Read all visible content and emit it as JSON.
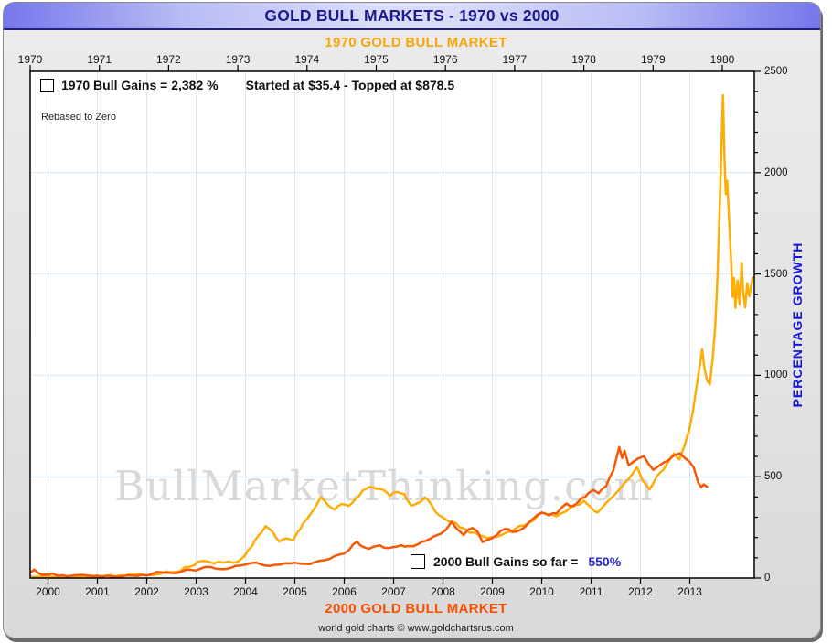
{
  "window_title": "GOLD BULL MARKETS - 1970 vs 2000",
  "top_axis": {
    "title": "1970 GOLD BULL MARKET",
    "years": [
      1970,
      1971,
      1972,
      1973,
      1974,
      1975,
      1976,
      1977,
      1978,
      1979,
      1980
    ]
  },
  "bottom_axis": {
    "title": "2000 GOLD BULL MARKET",
    "years": [
      2000,
      2001,
      2002,
      2003,
      2004,
      2005,
      2006,
      2007,
      2008,
      2009,
      2010,
      2011,
      2012,
      2013
    ]
  },
  "right_axis": {
    "title": "PERCENTAGE GROWTH",
    "major_ticks": [
      0,
      500,
      1000,
      1500,
      2000,
      2500
    ],
    "minor_step": 100
  },
  "legend_1970": {
    "gains_text": "1970 Bull Gains = 2,382 %",
    "detail_text": "Started at $35.4 - Topped at $878.5",
    "swatch_color": "#ffad00"
  },
  "legend_2000": {
    "gains_text": "2000 Bull Gains so far = ",
    "gains_value": "550%",
    "swatch_color": "#ff4d00"
  },
  "notes": {
    "rebased": "Rebased to Zero"
  },
  "watermark": "BullMarketThinking.com",
  "footer_text": "world gold charts © www.goldchartsrus.com",
  "colors": {
    "title_text": "#1b1b8e",
    "titlebar_edge": "#7577ec",
    "titlebar_center": "#d9dbf9",
    "subtitle_1970": "#f6a70b",
    "subtitle_2000": "#f94f02",
    "series_1970": "#ffad05",
    "series_2000": "#f85703",
    "gridline": "#d7e9f7",
    "axis_title_blue": "#1414dd",
    "legend_value_blue": "#2727cc",
    "watermark_gray": "#d9d9d9",
    "plot_border": "#000000"
  },
  "chart_data": {
    "type": "line",
    "title": "GOLD BULL MARKETS - 1970 vs 2000",
    "ylabel": "PERCENTAGE GROWTH",
    "ylim": [
      0,
      2500
    ],
    "yticks": [
      0,
      500,
      1000,
      1500,
      2000,
      2500
    ],
    "grid": true,
    "x_axis_top_range": [
      1970,
      1980.46
    ],
    "x_axis_bottom_range": [
      1999.64,
      2013.35
    ],
    "series": [
      {
        "name": "1970 Bull Market (% gain, top axis)",
        "axis": "top",
        "color": "#ffad05",
        "points": [
          [
            1970.0,
            2
          ],
          [
            1970.15,
            8
          ],
          [
            1970.3,
            0
          ],
          [
            1970.5,
            4
          ],
          [
            1970.7,
            2
          ],
          [
            1970.9,
            8
          ],
          [
            1971.1,
            10
          ],
          [
            1971.3,
            14
          ],
          [
            1971.5,
            18
          ],
          [
            1971.7,
            15
          ],
          [
            1971.9,
            22
          ],
          [
            1972.1,
            30
          ],
          [
            1972.3,
            55
          ],
          [
            1972.5,
            84
          ],
          [
            1972.65,
            72
          ],
          [
            1972.8,
            76
          ],
          [
            1973.0,
            81
          ],
          [
            1973.1,
            110
          ],
          [
            1973.2,
            155
          ],
          [
            1973.3,
            210
          ],
          [
            1973.4,
            256
          ],
          [
            1973.5,
            230
          ],
          [
            1973.6,
            180
          ],
          [
            1973.7,
            196
          ],
          [
            1973.8,
            185
          ],
          [
            1973.9,
            240
          ],
          [
            1974.0,
            292
          ],
          [
            1974.1,
            340
          ],
          [
            1974.2,
            399
          ],
          [
            1974.3,
            360
          ],
          [
            1974.4,
            337
          ],
          [
            1974.5,
            365
          ],
          [
            1974.6,
            355
          ],
          [
            1974.7,
            390
          ],
          [
            1974.8,
            430
          ],
          [
            1974.9,
            449
          ],
          [
            1975.0,
            440
          ],
          [
            1975.1,
            435
          ],
          [
            1975.2,
            405
          ],
          [
            1975.3,
            425
          ],
          [
            1975.4,
            415
          ],
          [
            1975.5,
            358
          ],
          [
            1975.6,
            370
          ],
          [
            1975.7,
            398
          ],
          [
            1975.8,
            360
          ],
          [
            1975.9,
            312
          ],
          [
            1976.0,
            290
          ],
          [
            1976.1,
            278
          ],
          [
            1976.2,
            252
          ],
          [
            1976.35,
            224
          ],
          [
            1976.5,
            210
          ],
          [
            1976.6,
            197
          ],
          [
            1976.75,
            205
          ],
          [
            1976.9,
            228
          ],
          [
            1977.0,
            240
          ],
          [
            1977.2,
            272
          ],
          [
            1977.4,
            323
          ],
          [
            1977.6,
            305
          ],
          [
            1977.8,
            345
          ],
          [
            1978.0,
            381
          ],
          [
            1978.1,
            350
          ],
          [
            1978.2,
            323
          ],
          [
            1978.35,
            380
          ],
          [
            1978.5,
            432
          ],
          [
            1978.65,
            490
          ],
          [
            1978.77,
            548
          ],
          [
            1978.85,
            480
          ],
          [
            1978.95,
            437
          ],
          [
            1979.05,
            500
          ],
          [
            1979.15,
            534
          ],
          [
            1979.25,
            590
          ],
          [
            1979.3,
            615
          ],
          [
            1979.38,
            585
          ],
          [
            1979.45,
            650
          ],
          [
            1979.52,
            730
          ],
          [
            1979.58,
            830
          ],
          [
            1979.63,
            950
          ],
          [
            1979.68,
            1060
          ],
          [
            1979.71,
            1130
          ],
          [
            1979.74,
            1040
          ],
          [
            1979.78,
            975
          ],
          [
            1979.82,
            955
          ],
          [
            1979.86,
            1080
          ],
          [
            1979.9,
            1250
          ],
          [
            1979.93,
            1480
          ],
          [
            1979.96,
            1800
          ],
          [
            1979.99,
            2150
          ],
          [
            1980.01,
            2382
          ],
          [
            1980.03,
            2090
          ],
          [
            1980.05,
            1894
          ],
          [
            1980.07,
            1960
          ],
          [
            1980.09,
            1830
          ],
          [
            1980.11,
            1690
          ],
          [
            1980.13,
            1550
          ],
          [
            1980.15,
            1387
          ],
          [
            1980.17,
            1480
          ],
          [
            1980.19,
            1333
          ],
          [
            1980.22,
            1468
          ],
          [
            1980.25,
            1350
          ],
          [
            1980.28,
            1555
          ],
          [
            1980.3,
            1420
          ],
          [
            1980.33,
            1335
          ],
          [
            1980.36,
            1455
          ],
          [
            1980.39,
            1390
          ],
          [
            1980.44,
            1482
          ]
        ]
      },
      {
        "name": "2000 Bull Market (% gain, bottom axis)",
        "axis": "bottom",
        "color": "#f85703",
        "points": [
          [
            1999.64,
            28
          ],
          [
            1999.72,
            42
          ],
          [
            1999.8,
            25
          ],
          [
            1999.95,
            18
          ],
          [
            2000.1,
            22
          ],
          [
            2000.3,
            14
          ],
          [
            2000.5,
            12
          ],
          [
            2000.7,
            16
          ],
          [
            2000.9,
            10
          ],
          [
            2001.1,
            6
          ],
          [
            2001.3,
            2
          ],
          [
            2001.5,
            8
          ],
          [
            2001.7,
            12
          ],
          [
            2001.9,
            16
          ],
          [
            2002.1,
            20
          ],
          [
            2002.3,
            28
          ],
          [
            2002.5,
            25
          ],
          [
            2002.7,
            32
          ],
          [
            2002.9,
            40
          ],
          [
            2003.1,
            48
          ],
          [
            2003.3,
            54
          ],
          [
            2003.5,
            44
          ],
          [
            2003.7,
            50
          ],
          [
            2003.9,
            62
          ],
          [
            2004.0,
            67
          ],
          [
            2004.15,
            75
          ],
          [
            2004.3,
            68
          ],
          [
            2004.5,
            60
          ],
          [
            2004.7,
            66
          ],
          [
            2004.9,
            72
          ],
          [
            2005.0,
            76
          ],
          [
            2005.2,
            70
          ],
          [
            2005.4,
            78
          ],
          [
            2005.6,
            88
          ],
          [
            2005.8,
            108
          ],
          [
            2006.0,
            121
          ],
          [
            2006.1,
            140
          ],
          [
            2006.26,
            180
          ],
          [
            2006.4,
            152
          ],
          [
            2006.5,
            144
          ],
          [
            2006.65,
            158
          ],
          [
            2006.8,
            150
          ],
          [
            2007.0,
            153
          ],
          [
            2007.15,
            162
          ],
          [
            2007.3,
            158
          ],
          [
            2007.5,
            168
          ],
          [
            2007.65,
            183
          ],
          [
            2007.8,
            204
          ],
          [
            2007.95,
            218
          ],
          [
            2008.05,
            236
          ],
          [
            2008.18,
            278
          ],
          [
            2008.25,
            252
          ],
          [
            2008.32,
            234
          ],
          [
            2008.42,
            212
          ],
          [
            2008.5,
            238
          ],
          [
            2008.6,
            247
          ],
          [
            2008.7,
            230
          ],
          [
            2008.8,
            178
          ],
          [
            2008.9,
            188
          ],
          [
            2009.0,
            197
          ],
          [
            2009.1,
            215
          ],
          [
            2009.25,
            242
          ],
          [
            2009.4,
            228
          ],
          [
            2009.55,
            235
          ],
          [
            2009.7,
            262
          ],
          [
            2009.85,
            298
          ],
          [
            2010.0,
            323
          ],
          [
            2010.15,
            308
          ],
          [
            2010.3,
            318
          ],
          [
            2010.5,
            368
          ],
          [
            2010.65,
            355
          ],
          [
            2010.8,
            392
          ],
          [
            2010.95,
            420
          ],
          [
            2011.05,
            435
          ],
          [
            2011.15,
            418
          ],
          [
            2011.3,
            452
          ],
          [
            2011.45,
            530
          ],
          [
            2011.57,
            646
          ],
          [
            2011.63,
            592
          ],
          [
            2011.68,
            628
          ],
          [
            2011.76,
            557
          ],
          [
            2011.85,
            572
          ],
          [
            2011.95,
            590
          ],
          [
            2012.07,
            601
          ],
          [
            2012.15,
            568
          ],
          [
            2012.26,
            534
          ],
          [
            2012.4,
            558
          ],
          [
            2012.55,
            578
          ],
          [
            2012.7,
            608
          ],
          [
            2012.8,
            615
          ],
          [
            2012.9,
            592
          ],
          [
            2013.0,
            572
          ],
          [
            2013.08,
            545
          ],
          [
            2013.17,
            471
          ],
          [
            2013.23,
            448
          ],
          [
            2013.28,
            462
          ],
          [
            2013.35,
            450
          ]
        ]
      }
    ]
  }
}
